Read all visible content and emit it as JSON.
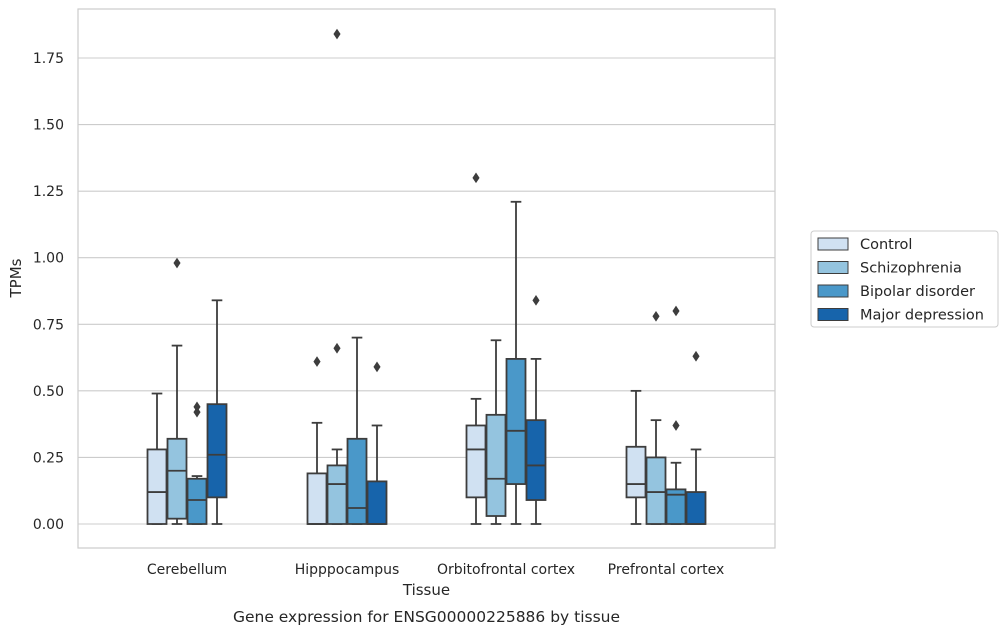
{
  "chart_data": {
    "type": "boxplot",
    "xlabel": "Tissue",
    "ylabel": "TPMs",
    "caption": "Gene expression for ENSG00000225886 by tissue",
    "ylim": [
      -0.09,
      1.94
    ],
    "yticks": [
      0.0,
      0.25,
      0.5,
      0.75,
      1.0,
      1.25,
      1.5,
      1.75
    ],
    "ytick_labels": [
      "0.00",
      "0.25",
      "0.50",
      "0.75",
      "1.00",
      "1.25",
      "1.50",
      "1.75"
    ],
    "grid": "horizontal",
    "legend_position": "right, outside plot",
    "categories": [
      "Cerebellum",
      "Hipppocampus",
      "Orbitofrontal cortex",
      "Prefrontal cortex"
    ],
    "series": [
      {
        "name": "Control",
        "color": "#d0e1f2",
        "boxes": [
          {
            "whisker_low": 0.0,
            "q1": 0.0,
            "median": 0.12,
            "q3": 0.28,
            "whisker_high": 0.49,
            "outliers": []
          },
          {
            "whisker_low": 0.0,
            "q1": 0.0,
            "median": 0.0,
            "q3": 0.19,
            "whisker_high": 0.38,
            "outliers": [
              0.61
            ]
          },
          {
            "whisker_low": 0.0,
            "q1": 0.1,
            "median": 0.28,
            "q3": 0.37,
            "whisker_high": 0.47,
            "outliers": [
              1.3
            ]
          },
          {
            "whisker_low": 0.0,
            "q1": 0.1,
            "median": 0.15,
            "q3": 0.29,
            "whisker_high": 0.5,
            "outliers": []
          }
        ]
      },
      {
        "name": "Schizophrenia",
        "color": "#94c4df",
        "boxes": [
          {
            "whisker_low": 0.0,
            "q1": 0.02,
            "median": 0.2,
            "q3": 0.32,
            "whisker_high": 0.67,
            "outliers": [
              0.98
            ]
          },
          {
            "whisker_low": 0.0,
            "q1": 0.0,
            "median": 0.15,
            "q3": 0.22,
            "whisker_high": 0.28,
            "outliers": [
              0.66,
              1.84
            ]
          },
          {
            "whisker_low": 0.0,
            "q1": 0.03,
            "median": 0.17,
            "q3": 0.41,
            "whisker_high": 0.69,
            "outliers": []
          },
          {
            "whisker_low": 0.0,
            "q1": 0.0,
            "median": 0.12,
            "q3": 0.25,
            "whisker_high": 0.39,
            "outliers": [
              0.78
            ]
          }
        ]
      },
      {
        "name": "Bipolar disorder",
        "color": "#4a98c9",
        "boxes": [
          {
            "whisker_low": 0.0,
            "q1": 0.0,
            "median": 0.09,
            "q3": 0.17,
            "whisker_high": 0.18,
            "outliers": [
              0.42,
              0.44
            ]
          },
          {
            "whisker_low": 0.0,
            "q1": 0.0,
            "median": 0.06,
            "q3": 0.32,
            "whisker_high": 0.7,
            "outliers": []
          },
          {
            "whisker_low": 0.0,
            "q1": 0.15,
            "median": 0.35,
            "q3": 0.62,
            "whisker_high": 1.21,
            "outliers": []
          },
          {
            "whisker_low": 0.0,
            "q1": 0.0,
            "median": 0.11,
            "q3": 0.13,
            "whisker_high": 0.23,
            "outliers": [
              0.37,
              0.8
            ]
          }
        ]
      },
      {
        "name": "Major depression",
        "color": "#1764ab",
        "boxes": [
          {
            "whisker_low": 0.0,
            "q1": 0.1,
            "median": 0.26,
            "q3": 0.45,
            "whisker_high": 0.84,
            "outliers": []
          },
          {
            "whisker_low": 0.0,
            "q1": 0.0,
            "median": 0.0,
            "q3": 0.16,
            "whisker_high": 0.37,
            "outliers": [
              0.59
            ]
          },
          {
            "whisker_low": 0.0,
            "q1": 0.09,
            "median": 0.22,
            "q3": 0.39,
            "whisker_high": 0.62,
            "outliers": [
              0.84
            ]
          },
          {
            "whisker_low": 0.0,
            "q1": 0.0,
            "median": 0.0,
            "q3": 0.12,
            "whisker_high": 0.28,
            "outliers": [
              0.63
            ]
          }
        ]
      }
    ]
  },
  "colors": {
    "grid": "#cccccc",
    "frame": "#cccccc",
    "edge": "#3d3d3d",
    "text": "#262626"
  }
}
